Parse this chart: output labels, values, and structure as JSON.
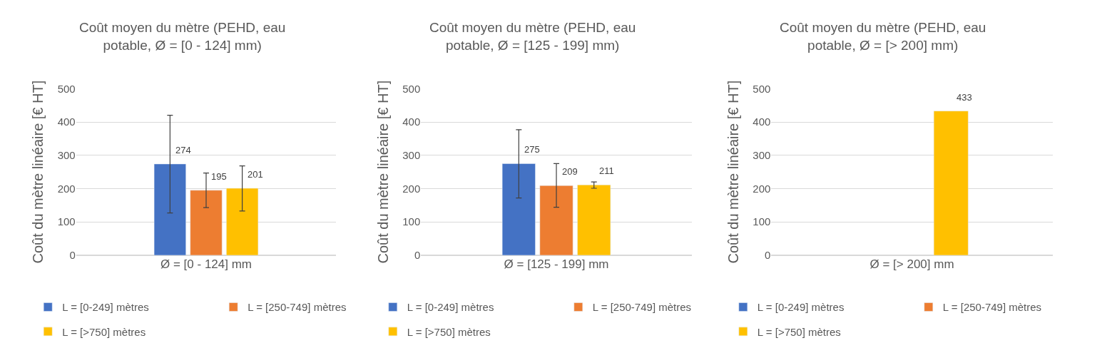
{
  "chart_data": [
    {
      "type": "bar",
      "title": "Coût moyen du mètre (PEHD, eau potable, Ø = [0 - 124] mm)",
      "ylabel": "Coût du mètre linéaire [€ HT]",
      "categories": [
        "Ø = [0 - 124] mm"
      ],
      "series": [
        {
          "name": "L = [0-249] mètres",
          "color": "#4472c4",
          "values": [
            274
          ],
          "errors": [
            [
              127,
              420
            ]
          ]
        },
        {
          "name": "L = [250-749] mètres",
          "color": "#ed7d31",
          "values": [
            195
          ],
          "errors": [
            [
              143,
              247
            ]
          ]
        },
        {
          "name": "L = [>750] mètres",
          "color": "#ffc000",
          "values": [
            201
          ],
          "errors": [
            [
              133,
              268
            ]
          ]
        }
      ],
      "ylim": [
        0,
        500
      ],
      "yticks": [
        0,
        100,
        200,
        300,
        400,
        500
      ],
      "grid": "y",
      "legend": "bottom",
      "data_labels": true
    },
    {
      "type": "bar",
      "title": "Coût moyen du mètre (PEHD, eau potable, Ø = [125 - 199] mm)",
      "ylabel": "Coût du mètre linéaire [€ HT]",
      "categories": [
        "Ø = [125 - 199] mm"
      ],
      "series": [
        {
          "name": "L = [0-249] mètres",
          "color": "#4472c4",
          "values": [
            275
          ],
          "errors": [
            [
              172,
              377
            ]
          ]
        },
        {
          "name": "L = [250-749] mètres",
          "color": "#ed7d31",
          "values": [
            209
          ],
          "errors": [
            [
              144,
              275
            ]
          ]
        },
        {
          "name": "L = [>750] mètres",
          "color": "#ffc000",
          "values": [
            211
          ],
          "errors": [
            [
              201,
              220
            ]
          ]
        }
      ],
      "ylim": [
        0,
        500
      ],
      "yticks": [
        0,
        100,
        200,
        300,
        400,
        500
      ],
      "grid": "y",
      "legend": "bottom",
      "data_labels": true
    },
    {
      "type": "bar",
      "title": "Coût moyen du mètre (PEHD, eau potable, Ø = [> 200] mm)",
      "ylabel": "Coût du mètre linéaire [€ HT]",
      "categories": [
        "Ø = [> 200] mm"
      ],
      "series": [
        {
          "name": "L = [0-249] mètres",
          "color": "#4472c4",
          "values": [
            null
          ]
        },
        {
          "name": "L = [250-749] mètres",
          "color": "#ed7d31",
          "values": [
            null
          ]
        },
        {
          "name": "L = [>750] mètres",
          "color": "#ffc000",
          "values": [
            433
          ]
        }
      ],
      "ylim": [
        0,
        500
      ],
      "yticks": [
        0,
        100,
        200,
        300,
        400,
        500
      ],
      "grid": "y",
      "legend": "bottom",
      "data_labels": true
    }
  ]
}
